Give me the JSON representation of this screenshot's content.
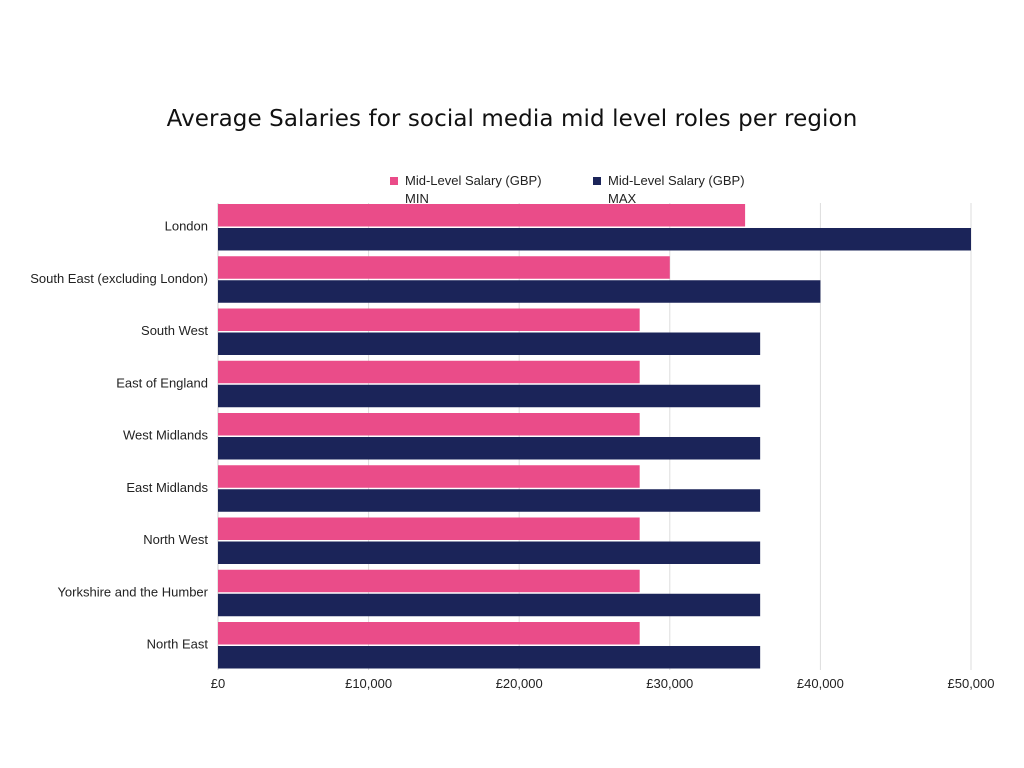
{
  "chart_data": {
    "type": "bar",
    "orientation": "horizontal",
    "title": "Average Salaries for social media mid level roles per region",
    "xlabel": "",
    "ylabel": "",
    "categories": [
      "London",
      "South East (excluding London)",
      "South West",
      "East of England",
      "West Midlands",
      "East Midlands",
      "North West",
      "Yorkshire and the Humber",
      "North East"
    ],
    "series": [
      {
        "name": "Mid-Level Salary (GBP) MIN",
        "name_lines": [
          "Mid-Level Salary (GBP)",
          "MIN"
        ],
        "color": "#ea4c89",
        "values": [
          35000,
          30000,
          28000,
          28000,
          28000,
          28000,
          28000,
          28000,
          28000
        ]
      },
      {
        "name": "Mid-Level Salary (GBP) MAX",
        "name_lines": [
          "Mid-Level Salary (GBP)",
          "MAX"
        ],
        "color": "#1b2459",
        "values": [
          50000,
          40000,
          36000,
          36000,
          36000,
          36000,
          36000,
          36000,
          36000
        ]
      }
    ],
    "xlim": [
      0,
      50000
    ],
    "ticks": [
      0,
      10000,
      20000,
      30000,
      40000,
      50000
    ],
    "tick_labels": [
      "£0",
      "£10,000",
      "£20,000",
      "£30,000",
      "£40,000",
      "£50,000"
    ],
    "grid": true,
    "legend_position": "top"
  }
}
